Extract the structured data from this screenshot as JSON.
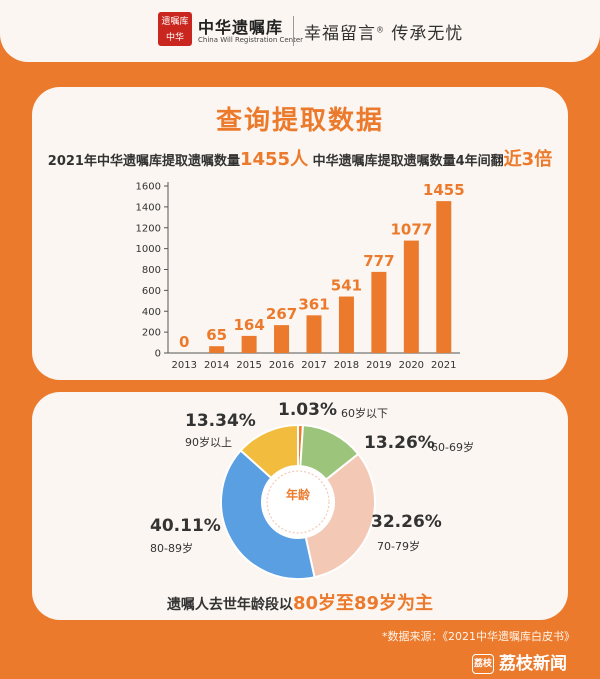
{
  "header": {
    "seal_text": "遗嘱库中华",
    "brand_name": "中华遗嘱库",
    "brand_en": "China Will Registration Center",
    "slogan": "幸福留言",
    "slogan_mark": "®",
    "slogan_tail": "传承无忧"
  },
  "headline": {
    "title": "查询提取数据",
    "part1": "2021年中华遗嘱库提取遗嘱数量",
    "highlight1": "1455人",
    "part2": " 中华遗嘱库提取遗嘱数量4年间翻",
    "highlight2": "近3倍"
  },
  "chart_data": [
    {
      "type": "bar",
      "categories": [
        "2013",
        "2014",
        "2015",
        "2016",
        "2017",
        "2018",
        "2019",
        "2020",
        "2021"
      ],
      "values": [
        0,
        65,
        164,
        267,
        361,
        541,
        777,
        1077,
        1455
      ],
      "ylim": [
        0,
        1600
      ],
      "yticks": [
        0,
        200,
        400,
        600,
        800,
        1000,
        1200,
        1400,
        1600
      ],
      "bar_color": "#ec7a2c",
      "grid": false
    },
    {
      "type": "pie",
      "style": "donut",
      "center_label": "年龄",
      "slices": [
        {
          "label": "60岁以下",
          "value": 1.03,
          "pct": "1.03%",
          "color": "#ec7a2c"
        },
        {
          "label": "60-69岁",
          "value": 13.26,
          "pct": "13.26%",
          "color": "#9cc57b"
        },
        {
          "label": "70-79岁",
          "value": 32.26,
          "pct": "32.26%",
          "color": "#f3c9b5"
        },
        {
          "label": "80-89岁",
          "value": 40.11,
          "pct": "40.11%",
          "color": "#5b9fe3"
        },
        {
          "label": "90岁以上",
          "value": 13.34,
          "pct": "13.34%",
          "color": "#f2bd3f"
        }
      ]
    }
  ],
  "bottom_note": {
    "part1": "遗嘱人去世年龄段以",
    "highlight": "80岁至89岁为主"
  },
  "source": "*数据来源：《2021中华遗嘱库白皮书》",
  "watermark": {
    "badge": "荔枝",
    "text": "荔枝新闻"
  }
}
